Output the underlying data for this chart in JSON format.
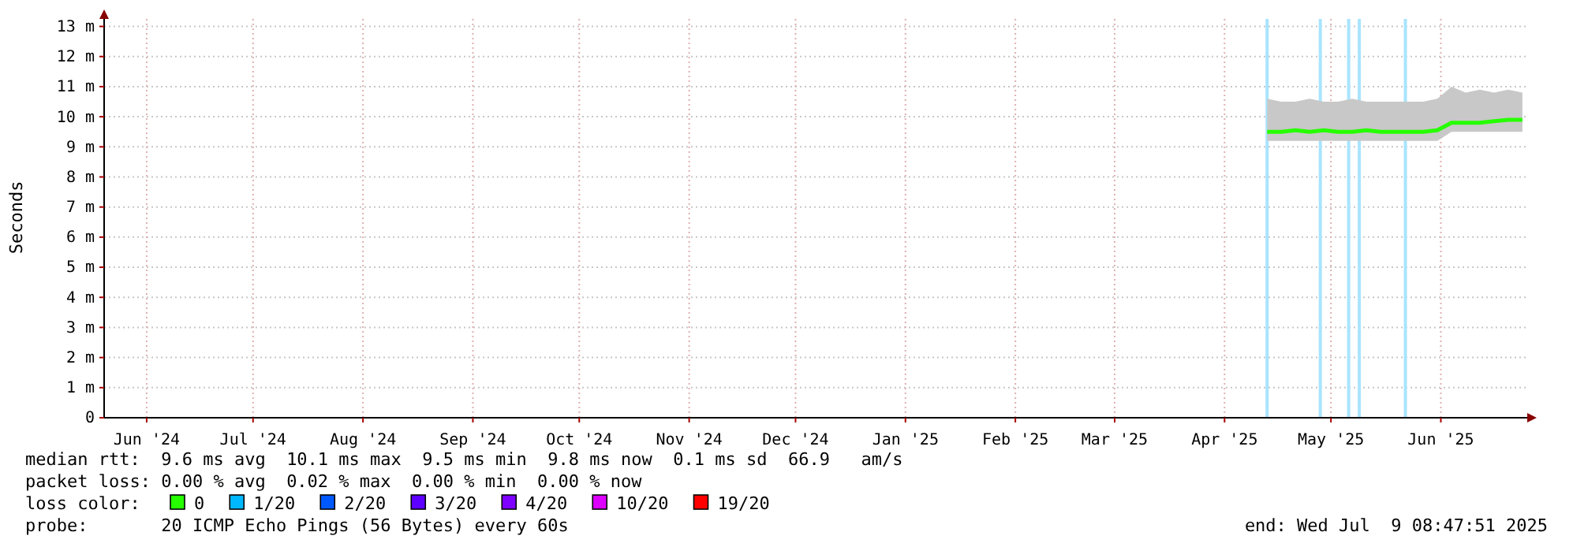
{
  "chart_data": {
    "type": "line",
    "ylabel": "Seconds",
    "xlim": [
      "2024-06-03",
      "2025-07-09T08:47"
    ],
    "xticks": [
      {
        "value": "2024-06-15",
        "label": "Jun '24"
      },
      {
        "value": "2024-07-15",
        "label": "Jul '24"
      },
      {
        "value": "2024-08-15",
        "label": "Aug '24"
      },
      {
        "value": "2024-09-15",
        "label": "Sep '24"
      },
      {
        "value": "2024-10-15",
        "label": "Oct '24"
      },
      {
        "value": "2024-11-15",
        "label": "Nov '24"
      },
      {
        "value": "2024-12-15",
        "label": "Dec '24"
      },
      {
        "value": "2025-01-15",
        "label": "Jan '25"
      },
      {
        "value": "2025-02-15",
        "label": "Feb '25"
      },
      {
        "value": "2025-03-15",
        "label": "Mar '25"
      },
      {
        "value": "2025-04-15",
        "label": "Apr '25"
      },
      {
        "value": "2025-05-15",
        "label": "May '25"
      },
      {
        "value": "2025-06-15",
        "label": "Jun '25"
      }
    ],
    "ylim": [
      0,
      13.25
    ],
    "yticks": [
      0,
      {
        "value": 1,
        "label": "1 m"
      },
      {
        "value": 2,
        "label": "2 m"
      },
      {
        "value": 3,
        "label": "3 m"
      },
      {
        "value": 4,
        "label": "4 m"
      },
      {
        "value": 5,
        "label": "5 m"
      },
      {
        "value": 6,
        "label": "6 m"
      },
      {
        "value": 7,
        "label": "7 m"
      },
      {
        "value": 8,
        "label": "8 m"
      },
      {
        "value": 9,
        "label": "9 m"
      },
      {
        "value": 10,
        "label": "10 m"
      },
      {
        "value": 11,
        "label": "11 m"
      },
      {
        "value": 12,
        "label": "12 m"
      },
      {
        "value": 13,
        "label": "13 m"
      }
    ],
    "grid": true,
    "legend": "bottom",
    "legend_title": "loss color:",
    "series": [
      {
        "name": "0",
        "color": "#26ff00",
        "x": [
          "2025-04-27",
          "2025-05-01",
          "2025-05-05",
          "2025-05-09",
          "2025-05-13",
          "2025-05-17",
          "2025-05-21",
          "2025-05-25",
          "2025-05-29",
          "2025-06-02",
          "2025-06-06",
          "2025-06-10",
          "2025-06-14",
          "2025-06-18",
          "2025-06-22",
          "2025-06-26",
          "2025-06-30",
          "2025-07-04",
          "2025-07-08"
        ],
        "values": [
          9.5,
          9.5,
          9.55,
          9.5,
          9.55,
          9.5,
          9.5,
          9.55,
          9.5,
          9.5,
          9.5,
          9.5,
          9.55,
          9.8,
          9.8,
          9.8,
          9.85,
          9.9,
          9.9
        ],
        "lower": [
          9.2,
          9.2,
          9.2,
          9.2,
          9.2,
          9.2,
          9.2,
          9.2,
          9.2,
          9.2,
          9.2,
          9.2,
          9.2,
          9.5,
          9.5,
          9.5,
          9.5,
          9.5,
          9.5
        ],
        "upper": [
          10.6,
          10.5,
          10.5,
          10.6,
          10.5,
          10.5,
          10.6,
          10.5,
          10.5,
          10.5,
          10.5,
          10.5,
          10.6,
          11.0,
          10.8,
          10.9,
          10.8,
          10.9,
          10.8
        ]
      },
      {
        "name": "1/20",
        "color": "#00b8ff",
        "values": [
          null
        ]
      },
      {
        "name": "2/20",
        "color": "#0059ff",
        "values": [
          null
        ]
      },
      {
        "name": "3/20",
        "color": "#5e00ff",
        "values": [
          null
        ]
      },
      {
        "name": "4/20",
        "color": "#7e00ff",
        "values": [
          null
        ]
      },
      {
        "name": "10/20",
        "color": "#dd00ff",
        "values": [
          null
        ]
      },
      {
        "name": "19/20",
        "color": "#ff0000",
        "values": [
          null
        ]
      }
    ],
    "ref_lines": [
      {
        "axis": "x",
        "value": "2025-04-27",
        "color": "#a8e4ff"
      },
      {
        "axis": "x",
        "value": "2025-05-12",
        "color": "#a8e4ff"
      },
      {
        "axis": "x",
        "value": "2025-05-20",
        "color": "#a8e4ff"
      },
      {
        "axis": "x",
        "value": "2025-05-23",
        "color": "#a8e4ff"
      },
      {
        "axis": "x",
        "value": "2025-06-05",
        "color": "#a8e4ff"
      }
    ],
    "annotations": [
      "median rtt:  9.6 ms avg  10.1 ms max  9.5 ms min  9.8 ms now  0.1 ms sd  66.9   am/s",
      "packet loss: 0.00 % avg  0.02 % max  0.00 % min  0.00 % now",
      "probe:       20 ICMP Echo Pings (56 Bytes) every 60s",
      "end: Wed Jul  9 08:47:51 2025"
    ]
  }
}
